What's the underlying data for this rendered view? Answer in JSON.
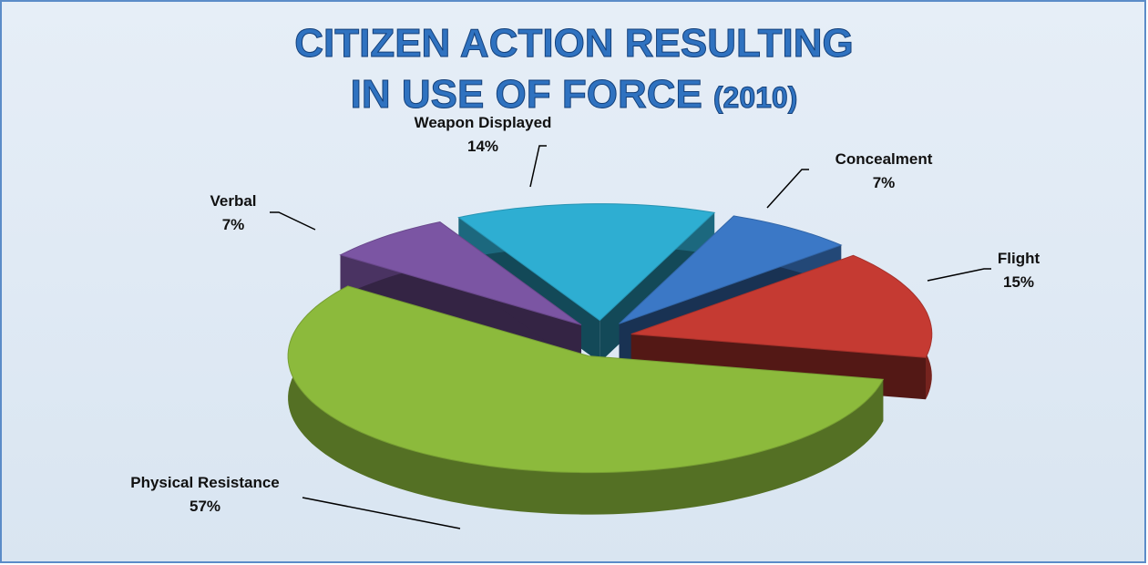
{
  "chart_data": {
    "type": "pie3d",
    "title": [
      "CITIZEN ACTION RESULTING",
      "IN USE OF FORCE",
      "(2010)"
    ],
    "categories": [
      "Weapon Displayed",
      "Concealment",
      "Flight",
      "Physical Resistance",
      "Verbal"
    ],
    "values": [
      14,
      7,
      15,
      57,
      7
    ],
    "value_labels": [
      "14%",
      "7%",
      "15%",
      "57%",
      "7%"
    ],
    "colors": [
      "#2eaed2",
      "#3b78c6",
      "#c53a32",
      "#8cba3c",
      "#7b55a3"
    ]
  }
}
